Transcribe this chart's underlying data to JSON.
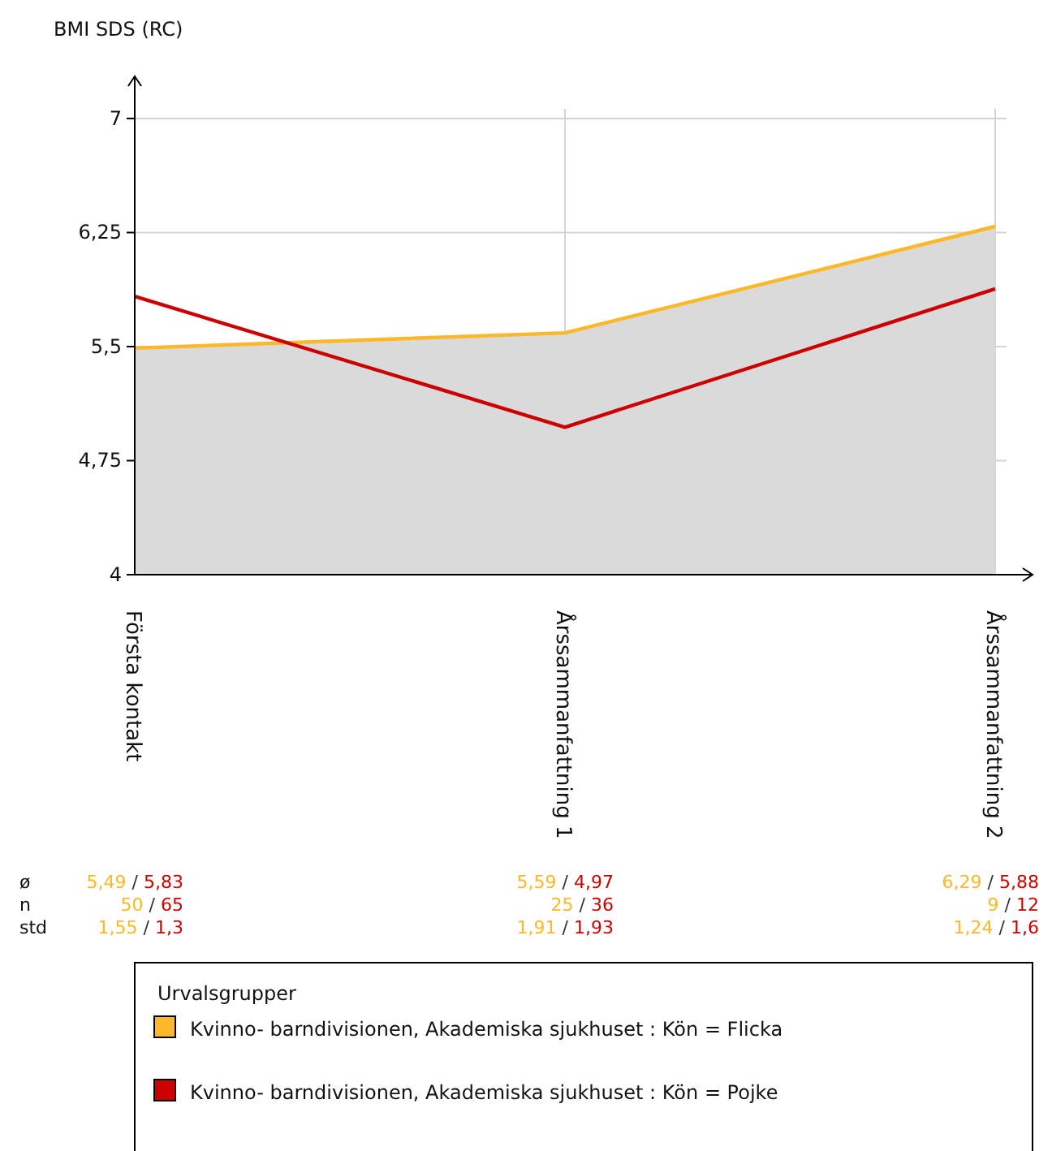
{
  "chart_data": {
    "type": "line",
    "ylabel": "BMI SDS (RC)",
    "categories": [
      "Första kontakt",
      "Årssammanfattning 1",
      "Årssammanfattning 2"
    ],
    "series": [
      {
        "name": "Kvinno- barndivisionen, Akademiska sjukhuset : Kön = Flicka",
        "color": "#fbb829",
        "type": "area",
        "values": [
          5.49,
          5.59,
          6.29
        ]
      },
      {
        "name": "Kvinno- barndivisionen, Akademiska sjukhuset : Kön = Pojke",
        "color": "#cc0000",
        "values": [
          5.83,
          4.97,
          5.88
        ]
      }
    ],
    "ylim": [
      4,
      7
    ],
    "yticks": [
      4,
      {
        "value": 4.75,
        "label": "4,75"
      },
      {
        "value": 5.5,
        "label": "5,5"
      },
      {
        "value": 6.25,
        "label": "6,25"
      },
      7
    ],
    "grid": true,
    "legend": "bottom",
    "legend_title": "Urvalsgrupper",
    "annotations": [
      "ø",
      "n",
      "std",
      "5,49 / 5,83",
      "50 / 65",
      "1,55 / 1,3",
      "5,59 / 4,97",
      "25 / 36",
      "1,91 / 1,93",
      "6,29 / 5,88",
      "9 / 12",
      "1,24 / 1,6"
    ]
  }
}
